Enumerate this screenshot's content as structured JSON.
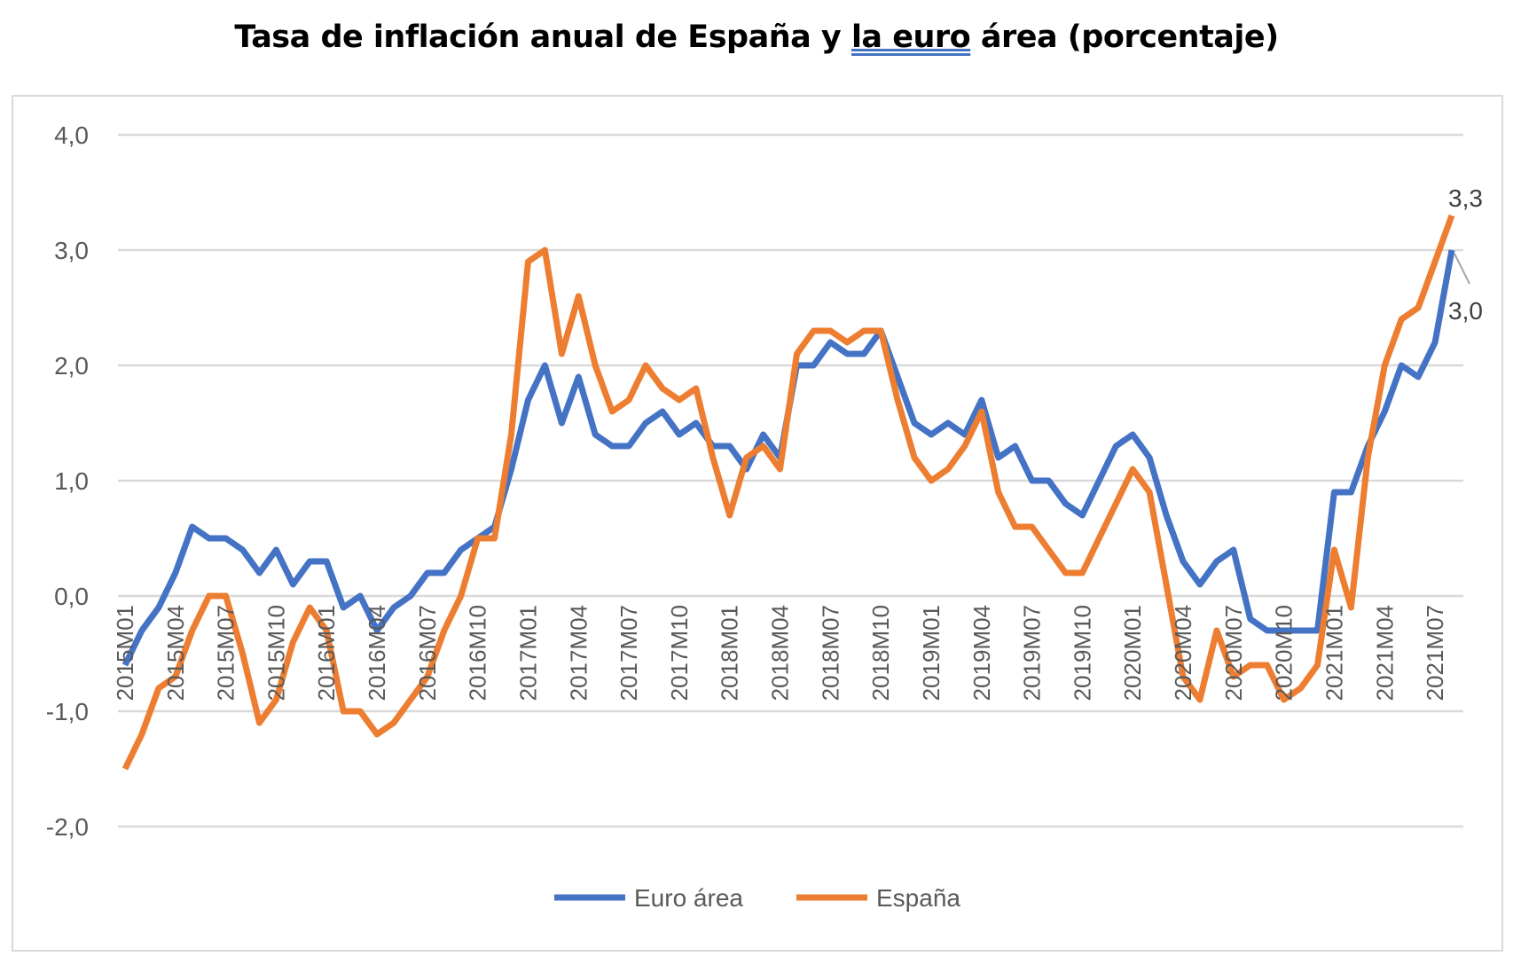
{
  "chart_data": {
    "type": "line",
    "title_parts": [
      "Tasa de inflación anual de España y ",
      "la euro",
      " área (porcentaje)"
    ],
    "xlabel": "",
    "ylabel": "",
    "ylim": [
      -2,
      4
    ],
    "yticks": [
      "-2,0",
      "-1,0",
      "0,0",
      "1,0",
      "2,0",
      "3,0",
      "4,0"
    ],
    "ytick_values": [
      -2,
      -1,
      0,
      1,
      2,
      3,
      4
    ],
    "grid": true,
    "legend_position": "bottom",
    "x": [
      "2015M01",
      "2015M02",
      "2015M03",
      "2015M04",
      "2015M05",
      "2015M06",
      "2015M07",
      "2015M08",
      "2015M09",
      "2015M10",
      "2015M11",
      "2015M12",
      "2016M01",
      "2016M02",
      "2016M03",
      "2016M04",
      "2016M05",
      "2016M06",
      "2016M07",
      "2016M08",
      "2016M09",
      "2016M10",
      "2016M11",
      "2016M12",
      "2017M01",
      "2017M02",
      "2017M03",
      "2017M04",
      "2017M05",
      "2017M06",
      "2017M07",
      "2017M08",
      "2017M09",
      "2017M10",
      "2017M11",
      "2017M12",
      "2018M01",
      "2018M02",
      "2018M03",
      "2018M04",
      "2018M05",
      "2018M06",
      "2018M07",
      "2018M08",
      "2018M09",
      "2018M10",
      "2018M11",
      "2018M12",
      "2019M01",
      "2019M02",
      "2019M03",
      "2019M04",
      "2019M05",
      "2019M06",
      "2019M07",
      "2019M08",
      "2019M09",
      "2019M10",
      "2019M11",
      "2019M12",
      "2020M01",
      "2020M02",
      "2020M03",
      "2020M04",
      "2020M05",
      "2020M06",
      "2020M07",
      "2020M08",
      "2020M09",
      "2020M10",
      "2020M11",
      "2020M12",
      "2021M01",
      "2021M02",
      "2021M03",
      "2021M04",
      "2021M05",
      "2021M06",
      "2021M07",
      "2021M08"
    ],
    "xtick_labels": [
      "2015M01",
      "2015M04",
      "2015M07",
      "2015M10",
      "2016M01",
      "2016M04",
      "2016M07",
      "2016M10",
      "2017M01",
      "2017M04",
      "2017M07",
      "2017M10",
      "2018M01",
      "2018M04",
      "2018M07",
      "2018M10",
      "2019M01",
      "2019M04",
      "2019M07",
      "2019M10",
      "2020M01",
      "2020M04",
      "2020M07",
      "2020M10",
      "2021M01",
      "2021M04",
      "2021M07"
    ],
    "series": [
      {
        "name": "Euro área",
        "color": "#4472c4",
        "end_label": "3,0",
        "values": [
          -0.6,
          -0.3,
          -0.1,
          0.2,
          0.6,
          0.5,
          0.5,
          0.4,
          0.2,
          0.4,
          0.1,
          0.3,
          0.3,
          -0.1,
          0.0,
          -0.3,
          -0.1,
          0.0,
          0.2,
          0.2,
          0.4,
          0.5,
          0.6,
          1.1,
          1.7,
          2.0,
          1.5,
          1.9,
          1.4,
          1.3,
          1.3,
          1.5,
          1.6,
          1.4,
          1.5,
          1.3,
          1.3,
          1.1,
          1.4,
          1.2,
          2.0,
          2.0,
          2.2,
          2.1,
          2.1,
          2.3,
          1.9,
          1.5,
          1.4,
          1.5,
          1.4,
          1.7,
          1.2,
          1.3,
          1.0,
          1.0,
          0.8,
          0.7,
          1.0,
          1.3,
          1.4,
          1.2,
          0.7,
          0.3,
          0.1,
          0.3,
          0.4,
          -0.2,
          -0.3,
          -0.3,
          -0.3,
          -0.3,
          0.9,
          0.9,
          1.3,
          1.6,
          2.0,
          1.9,
          2.2,
          3.0
        ]
      },
      {
        "name": "España",
        "color": "#ed7d31",
        "end_label": "3,3",
        "values": [
          -1.5,
          -1.2,
          -0.8,
          -0.7,
          -0.3,
          0.0,
          0.0,
          -0.5,
          -1.1,
          -0.9,
          -0.4,
          -0.1,
          -0.3,
          -1.0,
          -1.0,
          -1.2,
          -1.1,
          -0.9,
          -0.7,
          -0.3,
          0.0,
          0.5,
          0.5,
          1.4,
          2.9,
          3.0,
          2.1,
          2.6,
          2.0,
          1.6,
          1.7,
          2.0,
          1.8,
          1.7,
          1.8,
          1.2,
          0.7,
          1.2,
          1.3,
          1.1,
          2.1,
          2.3,
          2.3,
          2.2,
          2.3,
          2.3,
          1.7,
          1.2,
          1.0,
          1.1,
          1.3,
          1.6,
          0.9,
          0.6,
          0.6,
          0.4,
          0.2,
          0.2,
          0.5,
          0.8,
          1.1,
          0.9,
          0.1,
          -0.7,
          -0.9,
          -0.3,
          -0.7,
          -0.6,
          -0.6,
          -0.9,
          -0.8,
          -0.6,
          0.4,
          -0.1,
          1.2,
          2.0,
          2.4,
          2.5,
          2.9,
          3.3
        ]
      }
    ]
  }
}
